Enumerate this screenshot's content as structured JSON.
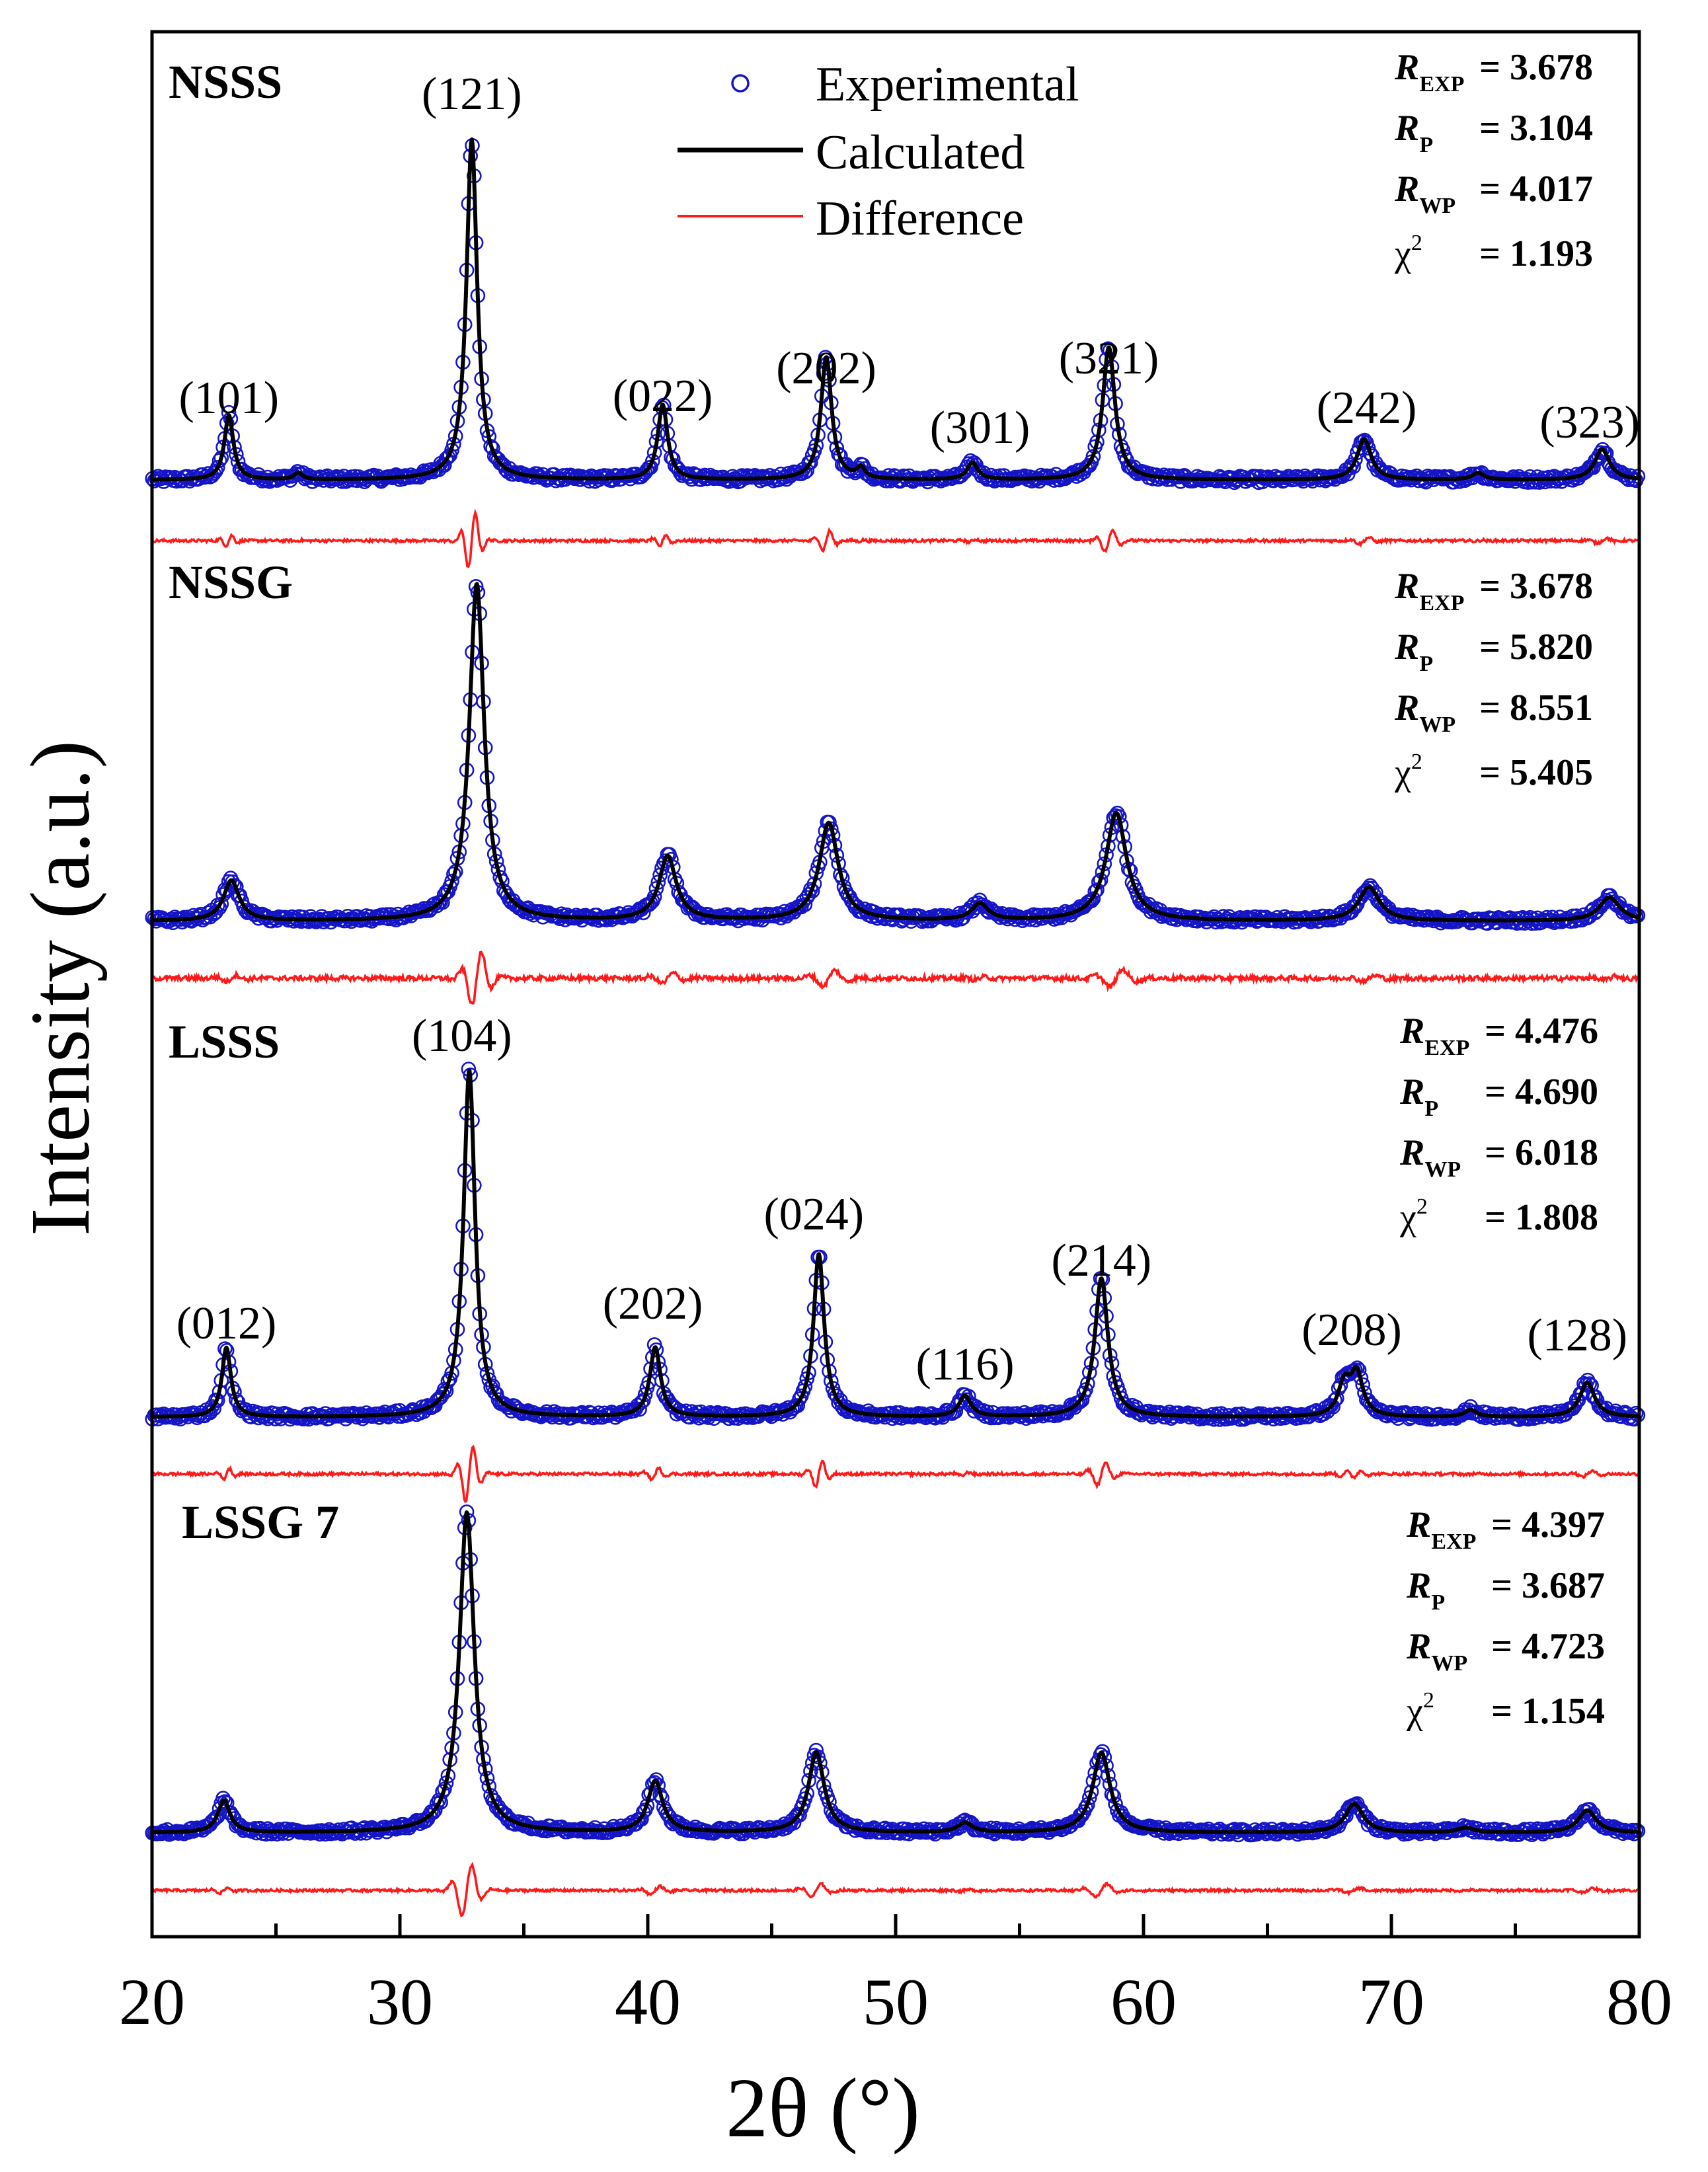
{
  "chart_data": {
    "type": "line",
    "title": "",
    "xlabel": "2θ (°)",
    "ylabel": "Intensity (a.u.)",
    "xlim": [
      20,
      80
    ],
    "x_ticks": [
      "20",
      "30",
      "40",
      "50",
      "60",
      "70",
      "80"
    ],
    "legend": {
      "placement": "top-center",
      "entries": [
        {
          "name": "Experimental",
          "style": "open-circle",
          "color": "#1515c8"
        },
        {
          "name": "Calculated",
          "style": "line",
          "color": "#000000"
        },
        {
          "name": "Difference",
          "style": "line",
          "color": "#ff1a1a"
        }
      ]
    },
    "colors": {
      "experimental": "#1515c8",
      "calculated": "#000000",
      "difference": "#ff1a1a",
      "axis": "#000000"
    },
    "panels": [
      {
        "name": "NSSS",
        "baseline": 0.046,
        "diff_offset": 0.022,
        "diff_noise": 0.004,
        "peaks": [
          {
            "pos": 23.1,
            "height": 0.19,
            "width": 0.22,
            "label": "(101)"
          },
          {
            "pos": 25.9,
            "height": 0.02,
            "width": 0.2,
            "label": ""
          },
          {
            "pos": 32.9,
            "height": 1.0,
            "width": 0.26,
            "label": "(121)"
          },
          {
            "pos": 40.6,
            "height": 0.22,
            "width": 0.24,
            "label": "(022)"
          },
          {
            "pos": 47.2,
            "height": 0.36,
            "width": 0.26,
            "label": "(202)"
          },
          {
            "pos": 48.6,
            "height": 0.03,
            "width": 0.2,
            "label": ""
          },
          {
            "pos": 53.1,
            "height": 0.05,
            "width": 0.26,
            "label": "(301)"
          },
          {
            "pos": 58.6,
            "height": 0.39,
            "width": 0.3,
            "label": "(321)"
          },
          {
            "pos": 68.9,
            "height": 0.12,
            "width": 0.34,
            "label": "(242)"
          },
          {
            "pos": 73.5,
            "height": 0.02,
            "width": 0.3,
            "label": ""
          },
          {
            "pos": 78.5,
            "height": 0.09,
            "width": 0.36,
            "label": "(323)"
          }
        ],
        "stats": {
          "r_exp": "= 3.678",
          "r_p": "= 3.104",
          "r_wp": "= 4.017",
          "chi2": "= 1.193"
        }
      },
      {
        "name": "NSSG",
        "baseline": 0.032,
        "diff_offset": 0.045,
        "diff_noise": 0.007,
        "peaks": [
          {
            "pos": 23.2,
            "height": 0.12,
            "width": 0.38
          },
          {
            "pos": 33.1,
            "height": 1.0,
            "width": 0.36
          },
          {
            "pos": 40.8,
            "height": 0.19,
            "width": 0.42
          },
          {
            "pos": 47.3,
            "height": 0.29,
            "width": 0.46
          },
          {
            "pos": 53.4,
            "height": 0.05,
            "width": 0.4
          },
          {
            "pos": 58.9,
            "height": 0.32,
            "width": 0.5
          },
          {
            "pos": 69.1,
            "height": 0.1,
            "width": 0.5
          },
          {
            "pos": 78.8,
            "height": 0.07,
            "width": 0.5
          }
        ],
        "stats": {
          "r_exp": "= 3.678",
          "r_p": "= 5.820",
          "r_wp": "= 8.551",
          "chi2": "= 5.405"
        }
      },
      {
        "name": "LSSS",
        "baseline": 0.03,
        "diff_offset": 0.028,
        "diff_noise": 0.004,
        "peaks": [
          {
            "pos": 23.0,
            "height": 0.2,
            "width": 0.22,
            "label": "(012)"
          },
          {
            "pos": 32.8,
            "height": 1.0,
            "width": 0.28,
            "label": "(104)"
          },
          {
            "pos": 40.3,
            "height": 0.2,
            "width": 0.26,
            "label": "(202)"
          },
          {
            "pos": 46.9,
            "height": 0.47,
            "width": 0.26,
            "label": "(024)"
          },
          {
            "pos": 52.8,
            "height": 0.06,
            "width": 0.3,
            "label": "(116)"
          },
          {
            "pos": 58.3,
            "height": 0.4,
            "width": 0.32,
            "label": "(214)"
          },
          {
            "pos": 68.1,
            "height": 0.09,
            "width": 0.3,
            "label": ""
          },
          {
            "pos": 68.6,
            "height": 0.12,
            "width": 0.3,
            "label": "(208)"
          },
          {
            "pos": 73.2,
            "height": 0.02,
            "width": 0.3,
            "label": ""
          },
          {
            "pos": 77.9,
            "height": 0.1,
            "width": 0.36,
            "label": "(128)"
          }
        ],
        "stats": {
          "r_exp": "= 4.476",
          "r_p": "= 4.690",
          "r_wp": "= 6.018",
          "chi2": "= 1.808"
        }
      },
      {
        "name": "LSSG 7",
        "baseline": 0.035,
        "diff_offset": 0.028,
        "diff_noise": 0.004,
        "peaks": [
          {
            "pos": 22.9,
            "height": 0.1,
            "width": 0.3
          },
          {
            "pos": 32.7,
            "height": 1.0,
            "width": 0.36
          },
          {
            "pos": 40.3,
            "height": 0.16,
            "width": 0.36
          },
          {
            "pos": 46.8,
            "height": 0.25,
            "width": 0.38
          },
          {
            "pos": 52.8,
            "height": 0.03,
            "width": 0.36
          },
          {
            "pos": 58.3,
            "height": 0.25,
            "width": 0.42
          },
          {
            "pos": 68.5,
            "height": 0.09,
            "width": 0.44
          },
          {
            "pos": 73.0,
            "height": 0.015,
            "width": 0.4
          },
          {
            "pos": 77.9,
            "height": 0.07,
            "width": 0.44
          }
        ],
        "stats": {
          "r_exp": "= 4.397",
          "r_p": "= 3.687",
          "r_wp": "= 4.723",
          "chi2": "= 1.154"
        }
      }
    ]
  }
}
